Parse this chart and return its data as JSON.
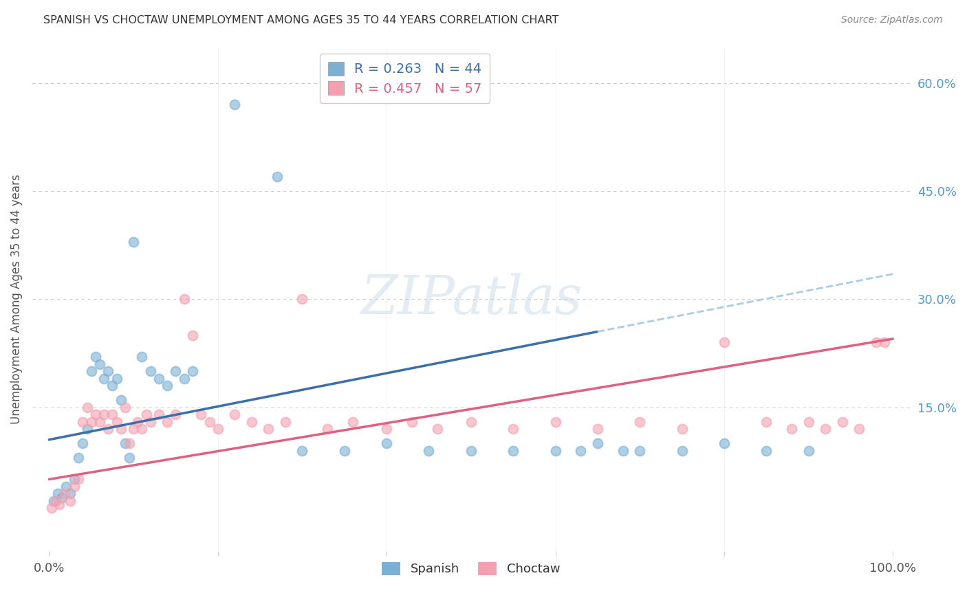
{
  "title": "SPANISH VS CHOCTAW UNEMPLOYMENT AMONG AGES 35 TO 44 YEARS CORRELATION CHART",
  "source": "Source: ZipAtlas.com",
  "ylabel": "Unemployment Among Ages 35 to 44 years",
  "xlim": [
    -2,
    102
  ],
  "ylim": [
    -5,
    65
  ],
  "ytick_vals_right": [
    60,
    45,
    30,
    15
  ],
  "background_color": "#ffffff",
  "grid_color": "#cccccc",
  "title_color": "#333333",
  "source_color": "#888888",
  "spanish_color": "#7bafd4",
  "choctaw_color": "#f4a0b0",
  "spanish_line_color": "#3a6fac",
  "choctaw_line_color": "#e06080",
  "spanish_dashed_color": "#aacce8",
  "spanish_R": 0.263,
  "spanish_N": 44,
  "choctaw_R": 0.457,
  "choctaw_N": 57,
  "spanish_x": [
    0.5,
    1.0,
    1.5,
    2.0,
    2.5,
    3.0,
    3.5,
    4.0,
    4.5,
    5.0,
    5.5,
    6.0,
    6.5,
    7.0,
    7.5,
    8.0,
    8.5,
    9.0,
    9.5,
    10.0,
    11.0,
    12.0,
    13.0,
    14.0,
    15.0,
    16.0,
    17.0,
    22.0,
    27.0,
    30.0,
    35.0,
    40.0,
    45.0,
    50.0,
    55.0,
    60.0,
    63.0,
    65.0,
    68.0,
    70.0,
    75.0,
    80.0,
    85.0,
    90.0
  ],
  "spanish_y": [
    2.0,
    3.0,
    2.5,
    4.0,
    3.0,
    5.0,
    8.0,
    10.0,
    12.0,
    20.0,
    22.0,
    21.0,
    19.0,
    20.0,
    18.0,
    19.0,
    16.0,
    10.0,
    8.0,
    38.0,
    22.0,
    20.0,
    19.0,
    18.0,
    20.0,
    19.0,
    20.0,
    57.0,
    47.0,
    9.0,
    9.0,
    10.0,
    9.0,
    9.0,
    9.0,
    9.0,
    9.0,
    10.0,
    9.0,
    9.0,
    9.0,
    10.0,
    9.0,
    9.0
  ],
  "choctaw_x": [
    0.3,
    0.8,
    1.2,
    1.8,
    2.5,
    3.0,
    3.5,
    4.0,
    4.5,
    5.0,
    5.5,
    6.0,
    6.5,
    7.0,
    7.5,
    8.0,
    8.5,
    9.0,
    9.5,
    10.0,
    10.5,
    11.0,
    11.5,
    12.0,
    13.0,
    14.0,
    15.0,
    16.0,
    17.0,
    18.0,
    19.0,
    20.0,
    22.0,
    24.0,
    26.0,
    28.0,
    30.0,
    33.0,
    36.0,
    40.0,
    43.0,
    46.0,
    50.0,
    55.0,
    60.0,
    65.0,
    70.0,
    75.0,
    80.0,
    85.0,
    88.0,
    90.0,
    92.0,
    94.0,
    96.0,
    98.0,
    99.0
  ],
  "choctaw_y": [
    1.0,
    2.0,
    1.5,
    3.0,
    2.0,
    4.0,
    5.0,
    13.0,
    15.0,
    13.0,
    14.0,
    13.0,
    14.0,
    12.0,
    14.0,
    13.0,
    12.0,
    15.0,
    10.0,
    12.0,
    13.0,
    12.0,
    14.0,
    13.0,
    14.0,
    13.0,
    14.0,
    30.0,
    25.0,
    14.0,
    13.0,
    12.0,
    14.0,
    13.0,
    12.0,
    13.0,
    30.0,
    12.0,
    13.0,
    12.0,
    13.0,
    12.0,
    13.0,
    12.0,
    13.0,
    12.0,
    13.0,
    12.0,
    24.0,
    13.0,
    12.0,
    13.0,
    12.0,
    13.0,
    12.0,
    24.0,
    24.0
  ],
  "sp_line_x0": 0,
  "sp_line_y0": 10.5,
  "sp_line_x1": 65,
  "sp_line_y1": 25.5,
  "sp_dash_x0": 65,
  "sp_dash_y0": 25.5,
  "sp_dash_x1": 100,
  "sp_dash_y1": 33.5,
  "ch_line_x0": 0,
  "ch_line_y0": 5.0,
  "ch_line_x1": 100,
  "ch_line_y1": 24.5
}
